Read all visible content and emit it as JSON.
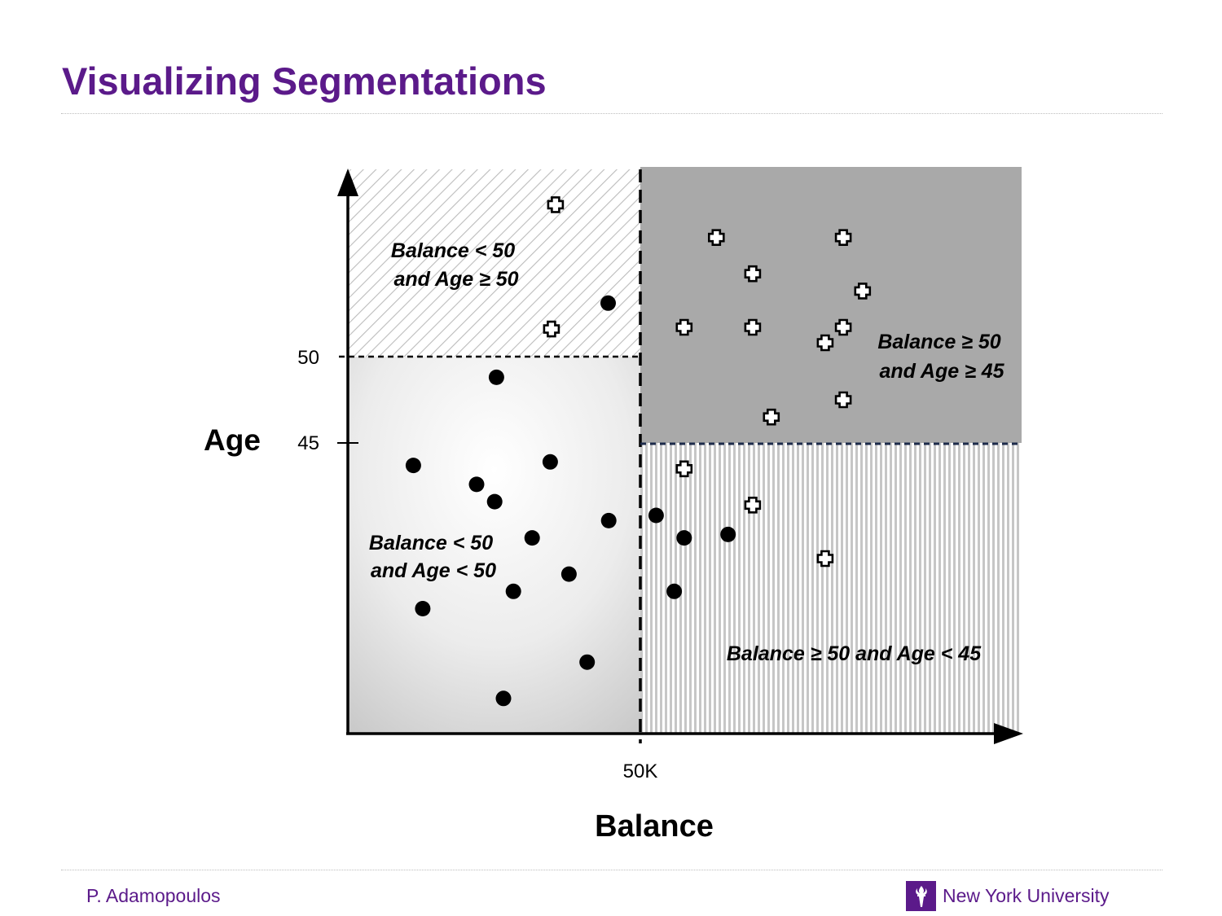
{
  "title": "Visualizing Segmentations",
  "footer": {
    "author": "P. Adamopoulos",
    "university": "New York University"
  },
  "colors": {
    "brand_purple": "#5b1a8a",
    "upper_right_region": "#a9a9a9",
    "hatch_line": "#bcbcbc"
  },
  "diagram": {
    "y_axis_label": "Age",
    "x_axis_label": "Balance",
    "y_ticks": [
      {
        "value": 50,
        "label": "50"
      },
      {
        "value": 45,
        "label": "45"
      }
    ],
    "x_ticks": [
      {
        "value": 50,
        "label": "50K"
      }
    ],
    "regions": [
      {
        "id": "low-balance-high-age",
        "lines": [
          "Balance < 50",
          "and Age ≥ 50"
        ],
        "fill": "diagonal-hatch"
      },
      {
        "id": "high-balance-high-age",
        "lines": [
          "Balance ≥ 50",
          "and Age ≥ 45"
        ],
        "fill": "solid-gray"
      },
      {
        "id": "low-balance-low-age",
        "lines": [
          "Balance < 50",
          "and Age < 50"
        ],
        "fill": "radial-gradient"
      },
      {
        "id": "high-balance-low-age",
        "lines": [
          "Balance ≥ 50 and Age < 45"
        ],
        "fill": "vertical-stripes"
      }
    ],
    "marker_legend": {
      "dot": "filled-circle",
      "plus": "white-cross"
    },
    "points": [
      {
        "class": "plus",
        "balance": 35.5,
        "age": 58.8
      },
      {
        "class": "plus",
        "balance": 34.8,
        "age": 51.6
      },
      {
        "class": "dot",
        "balance": 44.5,
        "age": 53.1
      },
      {
        "class": "dot",
        "balance": 25.4,
        "age": 48.8
      },
      {
        "class": "dot",
        "balance": 11.2,
        "age": 43.7
      },
      {
        "class": "dot",
        "balance": 34.6,
        "age": 43.9
      },
      {
        "class": "dot",
        "balance": 22.0,
        "age": 42.6
      },
      {
        "class": "dot",
        "balance": 25.1,
        "age": 41.6
      },
      {
        "class": "dot",
        "balance": 44.6,
        "age": 40.5
      },
      {
        "class": "dot",
        "balance": 31.5,
        "age": 39.5
      },
      {
        "class": "dot",
        "balance": 37.8,
        "age": 37.4
      },
      {
        "class": "dot",
        "balance": 28.3,
        "age": 36.4
      },
      {
        "class": "dot",
        "balance": 12.8,
        "age": 35.4
      },
      {
        "class": "dot",
        "balance": 40.9,
        "age": 32.3
      },
      {
        "class": "dot",
        "balance": 26.6,
        "age": 30.2
      },
      {
        "class": "plus",
        "balance": 63.0,
        "age": 56.9
      },
      {
        "class": "plus",
        "balance": 84.7,
        "age": 56.9
      },
      {
        "class": "plus",
        "balance": 69.2,
        "age": 54.8
      },
      {
        "class": "plus",
        "balance": 88.0,
        "age": 53.8
      },
      {
        "class": "plus",
        "balance": 57.5,
        "age": 51.7
      },
      {
        "class": "plus",
        "balance": 69.2,
        "age": 51.7
      },
      {
        "class": "plus",
        "balance": 84.7,
        "age": 51.7
      },
      {
        "class": "plus",
        "balance": 81.6,
        "age": 50.8
      },
      {
        "class": "plus",
        "balance": 84.7,
        "age": 47.5
      },
      {
        "class": "plus",
        "balance": 72.4,
        "age": 46.5
      },
      {
        "class": "plus",
        "balance": 57.5,
        "age": 43.5
      },
      {
        "class": "plus",
        "balance": 69.2,
        "age": 41.4
      },
      {
        "class": "plus",
        "balance": 81.6,
        "age": 38.3
      },
      {
        "class": "dot",
        "balance": 52.7,
        "age": 40.8
      },
      {
        "class": "dot",
        "balance": 57.5,
        "age": 39.5
      },
      {
        "class": "dot",
        "balance": 65.0,
        "age": 39.7
      },
      {
        "class": "dot",
        "balance": 55.8,
        "age": 36.4
      }
    ]
  }
}
